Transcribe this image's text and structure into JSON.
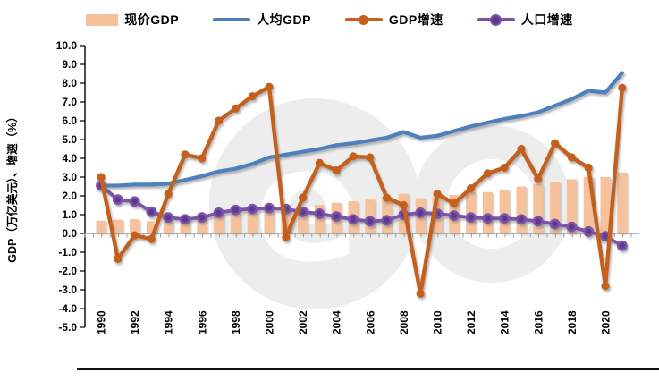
{
  "legend": {
    "items": [
      {
        "label": "现价GDP",
        "type": "bar",
        "color": "#f6c19b"
      },
      {
        "label": "人均GDP",
        "type": "line",
        "color": "#4e80bc"
      },
      {
        "label": "GDP增速",
        "type": "line-marker",
        "color": "#c5611c",
        "marker_color": "#c5611c"
      },
      {
        "label": "人口增速",
        "type": "line-marker",
        "color": "#7b52a8",
        "marker_color": "#5b3a8f"
      }
    ]
  },
  "axes": {
    "y_title": "GDP（万亿美元）、增速（%）",
    "y_tick_labels": [
      "10.0",
      "9.0",
      "8.0",
      "7.0",
      "6.0",
      "5.0",
      "4.0",
      "3.0",
      "2.0",
      "1.0",
      "0.0",
      "-1.0",
      "-2.0",
      "-3.0",
      "-4.0",
      "-5.0"
    ],
    "x_tick_labels": [
      "1990",
      "1992",
      "1994",
      "1996",
      "1998",
      "2000",
      "2002",
      "2004",
      "2006",
      "2008",
      "2010",
      "2012",
      "2014",
      "2016",
      "2018",
      "2020"
    ],
    "zero_line_color": "#9b9b9b",
    "axis_line_color": "#000000"
  },
  "chart_data": {
    "type": "bar+line combo",
    "x": [
      1990,
      1991,
      1992,
      1993,
      1994,
      1995,
      1996,
      1997,
      1998,
      1999,
      2000,
      2001,
      2002,
      2003,
      2004,
      2005,
      2006,
      2007,
      2008,
      2009,
      2010,
      2011,
      2012,
      2013,
      2014,
      2015,
      2016,
      2017,
      2018,
      2019,
      2020,
      2021
    ],
    "ylim": [
      -5.0,
      10.0
    ],
    "grid": "off",
    "legend_position": "top",
    "series": [
      {
        "name": "现价GDP",
        "type": "bar",
        "color": "#f6c19b",
        "values": [
          0.68,
          0.73,
          0.76,
          0.65,
          0.7,
          0.8,
          0.92,
          1.05,
          1.08,
          1.16,
          1.25,
          1.32,
          1.43,
          1.52,
          1.63,
          1.71,
          1.8,
          1.95,
          2.11,
          1.88,
          1.92,
          2.05,
          2.2,
          2.2,
          2.3,
          2.5,
          2.63,
          2.75,
          2.88,
          3.0,
          3.0,
          3.25
        ]
      },
      {
        "name": "人均GDP",
        "type": "line",
        "color": "#4e80bc",
        "values": [
          2.55,
          2.55,
          2.6,
          2.6,
          2.65,
          2.85,
          3.05,
          3.3,
          3.45,
          3.7,
          4.05,
          4.2,
          4.35,
          4.5,
          4.7,
          4.8,
          4.95,
          5.1,
          5.4,
          5.1,
          5.2,
          5.45,
          5.7,
          5.9,
          6.1,
          6.25,
          6.45,
          6.8,
          7.15,
          7.6,
          7.5,
          8.55
        ]
      },
      {
        "name": "GDP增速",
        "type": "line",
        "marker": "circle",
        "color": "#c5611c",
        "values": [
          3.0,
          -1.35,
          -0.1,
          -0.3,
          2.1,
          4.2,
          4.0,
          6.0,
          6.65,
          7.3,
          7.8,
          -0.2,
          1.9,
          3.75,
          3.35,
          4.1,
          4.05,
          1.9,
          1.5,
          -3.2,
          2.1,
          1.6,
          2.4,
          3.2,
          3.5,
          4.5,
          2.9,
          4.8,
          4.05,
          3.5,
          -2.8,
          7.75
        ]
      },
      {
        "name": "人口增速",
        "type": "line",
        "marker": "circle",
        "color": "#7b52a8",
        "marker_fill": "#5b3a8f",
        "values": [
          2.55,
          1.8,
          1.7,
          1.15,
          0.85,
          0.75,
          0.85,
          1.1,
          1.25,
          1.3,
          1.35,
          1.3,
          1.15,
          1.05,
          0.9,
          0.75,
          0.65,
          0.7,
          1.0,
          1.1,
          1.05,
          0.95,
          0.85,
          0.8,
          0.8,
          0.75,
          0.65,
          0.5,
          0.35,
          0.1,
          -0.15,
          -0.65
        ]
      }
    ]
  },
  "watermark": {
    "letter": "e"
  }
}
